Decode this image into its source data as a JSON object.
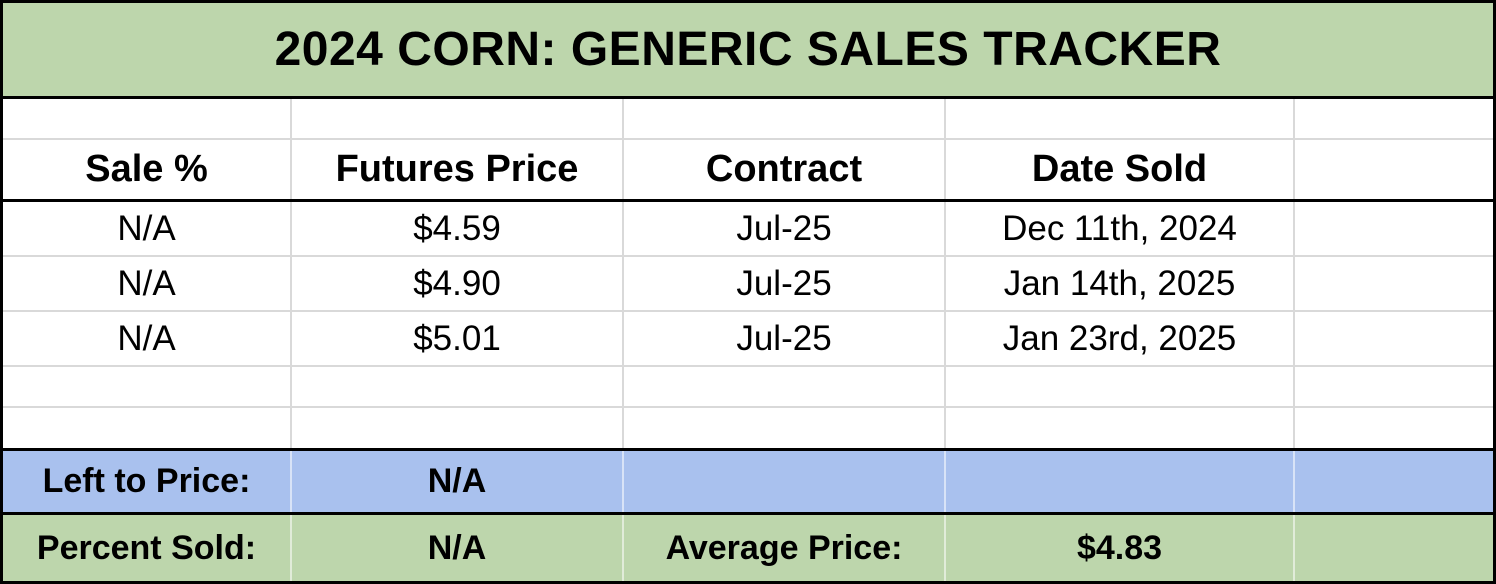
{
  "title": "2024 CORN: GENERIC SALES TRACKER",
  "columns": [
    "Sale %",
    "Futures Price",
    "Contract",
    "Date Sold",
    ""
  ],
  "rows": [
    [
      "N/A",
      "$4.59",
      "Jul-25",
      "Dec 11th, 2024",
      ""
    ],
    [
      "N/A",
      "$4.90",
      "Jul-25",
      "Jan 14th, 2025",
      ""
    ],
    [
      "N/A",
      "$5.01",
      "Jul-25",
      "Jan 23rd, 2025",
      ""
    ]
  ],
  "summary": {
    "left_to_price_label": "Left to Price:",
    "left_to_price_value": "N/A",
    "percent_sold_label": "Percent Sold:",
    "percent_sold_value": "N/A",
    "average_price_label": "Average Price:",
    "average_price_value": "$4.83"
  },
  "colors": {
    "title_and_footer_green": "#bdd6ac",
    "summary_blue": "#a9c1ee",
    "gridline_gray": "#d9d9d9",
    "border_black": "#000000"
  }
}
